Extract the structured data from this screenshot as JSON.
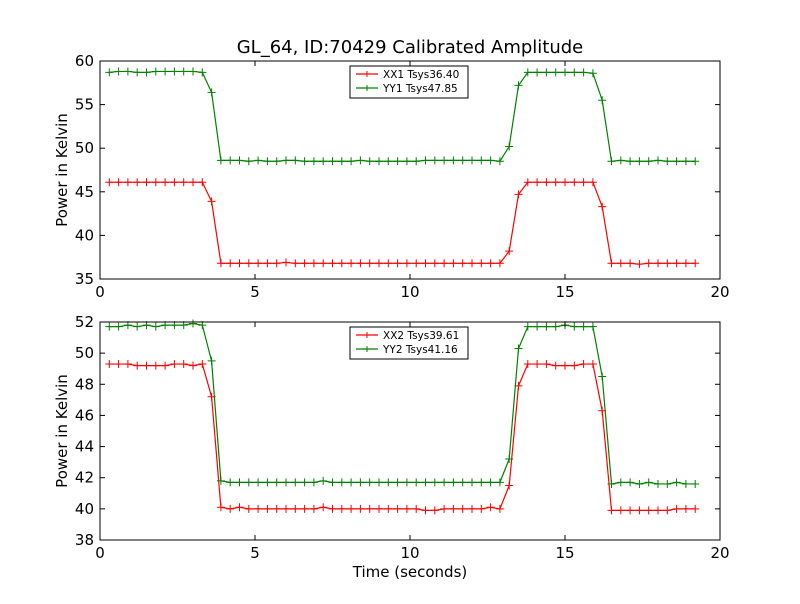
{
  "title": "GL_64, ID:70429 Calibrated Amplitude",
  "chart_data": [
    {
      "type": "line",
      "title": "GL_64, ID:70429 Calibrated Amplitude",
      "xlabel": "",
      "ylabel": "Power in Kelvin",
      "xlim": [
        0,
        20
      ],
      "ylim": [
        35,
        60
      ],
      "xticks": [
        0,
        5,
        10,
        15,
        20
      ],
      "yticks": [
        35,
        40,
        45,
        50,
        55,
        60
      ],
      "legend_position": "top-center",
      "grid": false,
      "series": [
        {
          "name": "XX1 Tsys36.40",
          "color": "#ff0000",
          "x": [
            0.3,
            0.6,
            0.9,
            1.2,
            1.5,
            1.8,
            2.1,
            2.4,
            2.7,
            3.0,
            3.3,
            3.6,
            3.9,
            4.2,
            4.5,
            4.8,
            5.1,
            5.4,
            5.7,
            6.0,
            6.3,
            6.6,
            6.9,
            7.2,
            7.5,
            7.8,
            8.1,
            8.4,
            8.7,
            9.0,
            9.3,
            9.6,
            9.9,
            10.2,
            10.5,
            10.8,
            11.1,
            11.4,
            11.7,
            12.0,
            12.3,
            12.6,
            12.9,
            13.2,
            13.5,
            13.8,
            14.1,
            14.4,
            14.7,
            15.0,
            15.3,
            15.6,
            15.9,
            16.2,
            16.5,
            16.8,
            17.1,
            17.4,
            17.7,
            18.0,
            18.3,
            18.6,
            18.9,
            19.2
          ],
          "y": [
            46.1,
            46.1,
            46.1,
            46.1,
            46.1,
            46.1,
            46.1,
            46.1,
            46.1,
            46.1,
            46.1,
            43.9,
            36.8,
            36.8,
            36.8,
            36.8,
            36.8,
            36.8,
            36.8,
            36.9,
            36.8,
            36.8,
            36.8,
            36.8,
            36.8,
            36.8,
            36.8,
            36.8,
            36.8,
            36.8,
            36.8,
            36.8,
            36.8,
            36.8,
            36.8,
            36.8,
            36.8,
            36.8,
            36.8,
            36.8,
            36.8,
            36.8,
            36.8,
            38.2,
            44.7,
            46.1,
            46.1,
            46.1,
            46.1,
            46.1,
            46.1,
            46.1,
            46.1,
            43.3,
            36.8,
            36.8,
            36.8,
            36.7,
            36.8,
            36.8,
            36.8,
            36.8,
            36.8,
            36.8
          ]
        },
        {
          "name": "YY1 Tsys47.85",
          "color": "#008000",
          "x": [
            0.3,
            0.6,
            0.9,
            1.2,
            1.5,
            1.8,
            2.1,
            2.4,
            2.7,
            3.0,
            3.3,
            3.6,
            3.9,
            4.2,
            4.5,
            4.8,
            5.1,
            5.4,
            5.7,
            6.0,
            6.3,
            6.6,
            6.9,
            7.2,
            7.5,
            7.8,
            8.1,
            8.4,
            8.7,
            9.0,
            9.3,
            9.6,
            9.9,
            10.2,
            10.5,
            10.8,
            11.1,
            11.4,
            11.7,
            12.0,
            12.3,
            12.6,
            12.9,
            13.2,
            13.5,
            13.8,
            14.1,
            14.4,
            14.7,
            15.0,
            15.3,
            15.6,
            15.9,
            16.2,
            16.5,
            16.8,
            17.1,
            17.4,
            17.7,
            18.0,
            18.3,
            18.6,
            18.9,
            19.2
          ],
          "y": [
            58.7,
            58.8,
            58.8,
            58.7,
            58.7,
            58.8,
            58.8,
            58.8,
            58.8,
            58.8,
            58.7,
            56.4,
            48.6,
            48.6,
            48.6,
            48.5,
            48.6,
            48.5,
            48.5,
            48.6,
            48.6,
            48.5,
            48.5,
            48.5,
            48.5,
            48.5,
            48.5,
            48.6,
            48.5,
            48.5,
            48.5,
            48.5,
            48.5,
            48.5,
            48.6,
            48.6,
            48.6,
            48.6,
            48.6,
            48.6,
            48.6,
            48.6,
            48.5,
            50.2,
            57.2,
            58.7,
            58.7,
            58.7,
            58.7,
            58.7,
            58.7,
            58.7,
            58.6,
            55.5,
            48.5,
            48.6,
            48.5,
            48.5,
            48.5,
            48.6,
            48.5,
            48.5,
            48.5,
            48.5
          ]
        }
      ]
    },
    {
      "type": "line",
      "title": "",
      "xlabel": "Time (seconds)",
      "ylabel": "Power in Kelvin",
      "xlim": [
        0,
        20
      ],
      "ylim": [
        38,
        52
      ],
      "xticks": [
        0,
        5,
        10,
        15,
        20
      ],
      "yticks": [
        38,
        40,
        42,
        44,
        46,
        48,
        50,
        52
      ],
      "legend_position": "top-center",
      "grid": false,
      "series": [
        {
          "name": "XX2 Tsys39.61",
          "color": "#ff0000",
          "x": [
            0.3,
            0.6,
            0.9,
            1.2,
            1.5,
            1.8,
            2.1,
            2.4,
            2.7,
            3.0,
            3.3,
            3.6,
            3.9,
            4.2,
            4.5,
            4.8,
            5.1,
            5.4,
            5.7,
            6.0,
            6.3,
            6.6,
            6.9,
            7.2,
            7.5,
            7.8,
            8.1,
            8.4,
            8.7,
            9.0,
            9.3,
            9.6,
            9.9,
            10.2,
            10.5,
            10.8,
            11.1,
            11.4,
            11.7,
            12.0,
            12.3,
            12.6,
            12.9,
            13.2,
            13.5,
            13.8,
            14.1,
            14.4,
            14.7,
            15.0,
            15.3,
            15.6,
            15.9,
            16.2,
            16.5,
            16.8,
            17.1,
            17.4,
            17.7,
            18.0,
            18.3,
            18.6,
            18.9,
            19.2
          ],
          "y": [
            49.3,
            49.3,
            49.3,
            49.2,
            49.2,
            49.2,
            49.2,
            49.3,
            49.3,
            49.2,
            49.3,
            47.2,
            40.1,
            40.0,
            40.1,
            40.0,
            40.0,
            40.0,
            40.0,
            40.0,
            40.0,
            40.0,
            40.0,
            40.1,
            40.0,
            40.0,
            40.0,
            40.0,
            40.0,
            40.0,
            40.0,
            40.0,
            40.0,
            40.0,
            39.9,
            39.9,
            40.0,
            40.0,
            40.0,
            40.0,
            40.0,
            40.1,
            40.0,
            41.5,
            47.9,
            49.3,
            49.3,
            49.3,
            49.2,
            49.2,
            49.2,
            49.3,
            49.3,
            46.3,
            39.9,
            39.9,
            39.9,
            39.9,
            39.9,
            39.9,
            39.9,
            40.0,
            40.0,
            40.0
          ]
        },
        {
          "name": "YY2 Tsys41.16",
          "color": "#008000",
          "x": [
            0.3,
            0.6,
            0.9,
            1.2,
            1.5,
            1.8,
            2.1,
            2.4,
            2.7,
            3.0,
            3.3,
            3.6,
            3.9,
            4.2,
            4.5,
            4.8,
            5.1,
            5.4,
            5.7,
            6.0,
            6.3,
            6.6,
            6.9,
            7.2,
            7.5,
            7.8,
            8.1,
            8.4,
            8.7,
            9.0,
            9.3,
            9.6,
            9.9,
            10.2,
            10.5,
            10.8,
            11.1,
            11.4,
            11.7,
            12.0,
            12.3,
            12.6,
            12.9,
            13.2,
            13.5,
            13.8,
            14.1,
            14.4,
            14.7,
            15.0,
            15.3,
            15.6,
            15.9,
            16.2,
            16.5,
            16.8,
            17.1,
            17.4,
            17.7,
            18.0,
            18.3,
            18.6,
            18.9,
            19.2
          ],
          "y": [
            51.7,
            51.7,
            51.8,
            51.7,
            51.8,
            51.7,
            51.8,
            51.8,
            51.8,
            51.9,
            51.8,
            49.5,
            41.8,
            41.7,
            41.7,
            41.7,
            41.7,
            41.7,
            41.7,
            41.7,
            41.7,
            41.7,
            41.7,
            41.8,
            41.7,
            41.7,
            41.7,
            41.7,
            41.7,
            41.7,
            41.7,
            41.7,
            41.7,
            41.7,
            41.7,
            41.7,
            41.7,
            41.7,
            41.7,
            41.7,
            41.7,
            41.7,
            41.7,
            43.2,
            50.3,
            51.7,
            51.7,
            51.7,
            51.7,
            51.8,
            51.7,
            51.7,
            51.7,
            48.5,
            41.6,
            41.7,
            41.7,
            41.6,
            41.7,
            41.6,
            41.6,
            41.7,
            41.6,
            41.6
          ]
        }
      ]
    }
  ]
}
